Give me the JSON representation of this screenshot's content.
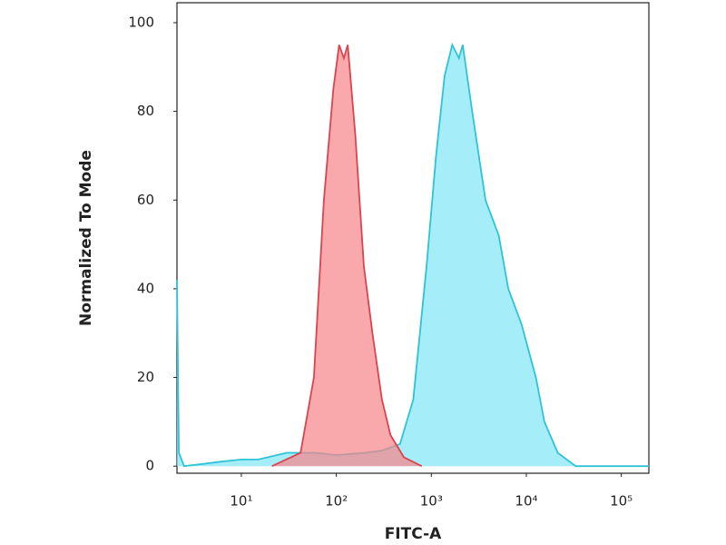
{
  "chart_data": {
    "type": "area",
    "xlabel": "FITC-A",
    "ylabel": "Normalized To Mode",
    "xscale": "log",
    "xlim": [
      2.1,
      195000
    ],
    "ylim": [
      -1.6,
      104.5
    ],
    "xticks": [
      {
        "value": 10,
        "label": "10¹"
      },
      {
        "value": 100,
        "label": "10²"
      },
      {
        "value": 1000,
        "label": "10³"
      },
      {
        "value": 10000,
        "label": "10⁴"
      },
      {
        "value": 100000,
        "label": "10⁵"
      }
    ],
    "yticks": [
      0,
      20,
      40,
      60,
      80,
      100
    ],
    "grid": false,
    "series": [
      {
        "color": "#2fc3d6",
        "fill": "#82e6f7",
        "x": [
          2.1,
          2.2,
          2.5,
          4,
          6,
          10,
          15,
          30,
          60,
          100,
          200,
          300,
          468,
          645,
          891,
          1122,
          1380,
          1660,
          1950,
          2140,
          2690,
          3720,
          5130,
          6460,
          8910,
          12600,
          15500,
          21400,
          33100,
          45000,
          195000
        ],
        "values": [
          42,
          3,
          0,
          0.5,
          1,
          1.5,
          1.5,
          3,
          3,
          2.5,
          3,
          3.5,
          5,
          15,
          45,
          70,
          88,
          95,
          92,
          95,
          80,
          60,
          52,
          40,
          32,
          20,
          10,
          3,
          0,
          0,
          0
        ]
      },
      {
        "color": "#d9454f",
        "fill": "#f7868b",
        "x": [
          21,
          42,
          58,
          74,
          93,
          107,
          120,
          132,
          158,
          195,
          240,
          302,
          372,
          513,
          794
        ],
        "values": [
          0,
          3,
          20,
          60,
          85,
          95,
          92,
          95,
          75,
          45,
          30,
          15,
          7,
          2,
          0
        ]
      }
    ]
  }
}
